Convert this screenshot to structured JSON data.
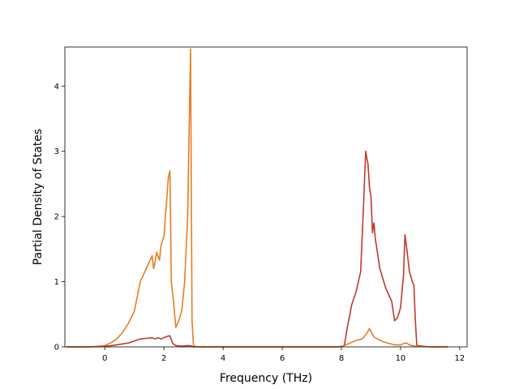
{
  "chart_data": {
    "type": "line",
    "title": "",
    "xlabel": "Frequency (THz)",
    "ylabel": "Partial Density of States",
    "xlim": [
      -1.35,
      12.25
    ],
    "ylim": [
      0,
      4.6
    ],
    "xticks": [
      0,
      2,
      4,
      6,
      8,
      10,
      12
    ],
    "yticks": [
      0,
      1,
      2,
      3,
      4
    ],
    "grid": false,
    "legend": "none",
    "series": [
      {
        "color": "#c0392b",
        "x": [
          -1.3,
          -0.5,
          0.0,
          0.4,
          0.8,
          1.0,
          1.2,
          1.4,
          1.6,
          1.7,
          1.8,
          1.9,
          2.0,
          2.1,
          2.2,
          2.3,
          2.4,
          2.6,
          2.8,
          2.9,
          3.0,
          3.1,
          3.5,
          4.0,
          5.0,
          6.0,
          7.0,
          7.9,
          8.1,
          8.2,
          8.35,
          8.5,
          8.65,
          8.75,
          8.82,
          8.9,
          8.95,
          9.0,
          9.05,
          9.1,
          9.15,
          9.2,
          9.3,
          9.5,
          9.7,
          9.8,
          9.9,
          10.0,
          10.1,
          10.15,
          10.2,
          10.3,
          10.4,
          10.45,
          10.5,
          10.55,
          11.0,
          11.6
        ],
        "values": [
          0,
          0,
          0.005,
          0.03,
          0.06,
          0.09,
          0.12,
          0.13,
          0.14,
          0.12,
          0.14,
          0.12,
          0.14,
          0.16,
          0.17,
          0.05,
          0.02,
          0.01,
          0.02,
          0.015,
          0,
          0,
          0,
          0,
          0,
          0,
          0,
          0,
          0.02,
          0.3,
          0.65,
          0.85,
          1.15,
          2.2,
          3.0,
          2.8,
          2.45,
          2.3,
          1.75,
          1.9,
          1.65,
          1.5,
          1.2,
          0.9,
          0.7,
          0.4,
          0.45,
          0.6,
          1.1,
          1.72,
          1.55,
          1.15,
          1.0,
          0.95,
          0.4,
          0.02,
          0,
          0
        ]
      },
      {
        "color": "#e67e22",
        "x": [
          -1.3,
          -0.5,
          0.0,
          0.2,
          0.4,
          0.6,
          0.8,
          1.0,
          1.2,
          1.4,
          1.6,
          1.65,
          1.7,
          1.75,
          1.85,
          1.9,
          2.0,
          2.1,
          2.15,
          2.2,
          2.25,
          2.3,
          2.4,
          2.5,
          2.6,
          2.7,
          2.8,
          2.85,
          2.9,
          2.95,
          3.0,
          3.1,
          4.0,
          6.0,
          7.9,
          8.1,
          8.3,
          8.5,
          8.7,
          8.85,
          8.95,
          9.1,
          9.4,
          9.8,
          10.0,
          10.1,
          10.2,
          10.3,
          10.5,
          11.0,
          11.6
        ],
        "values": [
          0,
          0,
          0.02,
          0.06,
          0.12,
          0.22,
          0.36,
          0.55,
          1.0,
          1.2,
          1.4,
          1.2,
          1.3,
          1.45,
          1.33,
          1.55,
          1.7,
          2.3,
          2.6,
          2.7,
          1.0,
          0.8,
          0.3,
          0.4,
          0.55,
          1.0,
          2.0,
          3.3,
          4.57,
          0.4,
          0.02,
          0,
          0,
          0,
          0,
          0.02,
          0.06,
          0.1,
          0.12,
          0.2,
          0.28,
          0.15,
          0.08,
          0.03,
          0.03,
          0.05,
          0.06,
          0.03,
          0.01,
          0,
          0
        ]
      }
    ]
  }
}
